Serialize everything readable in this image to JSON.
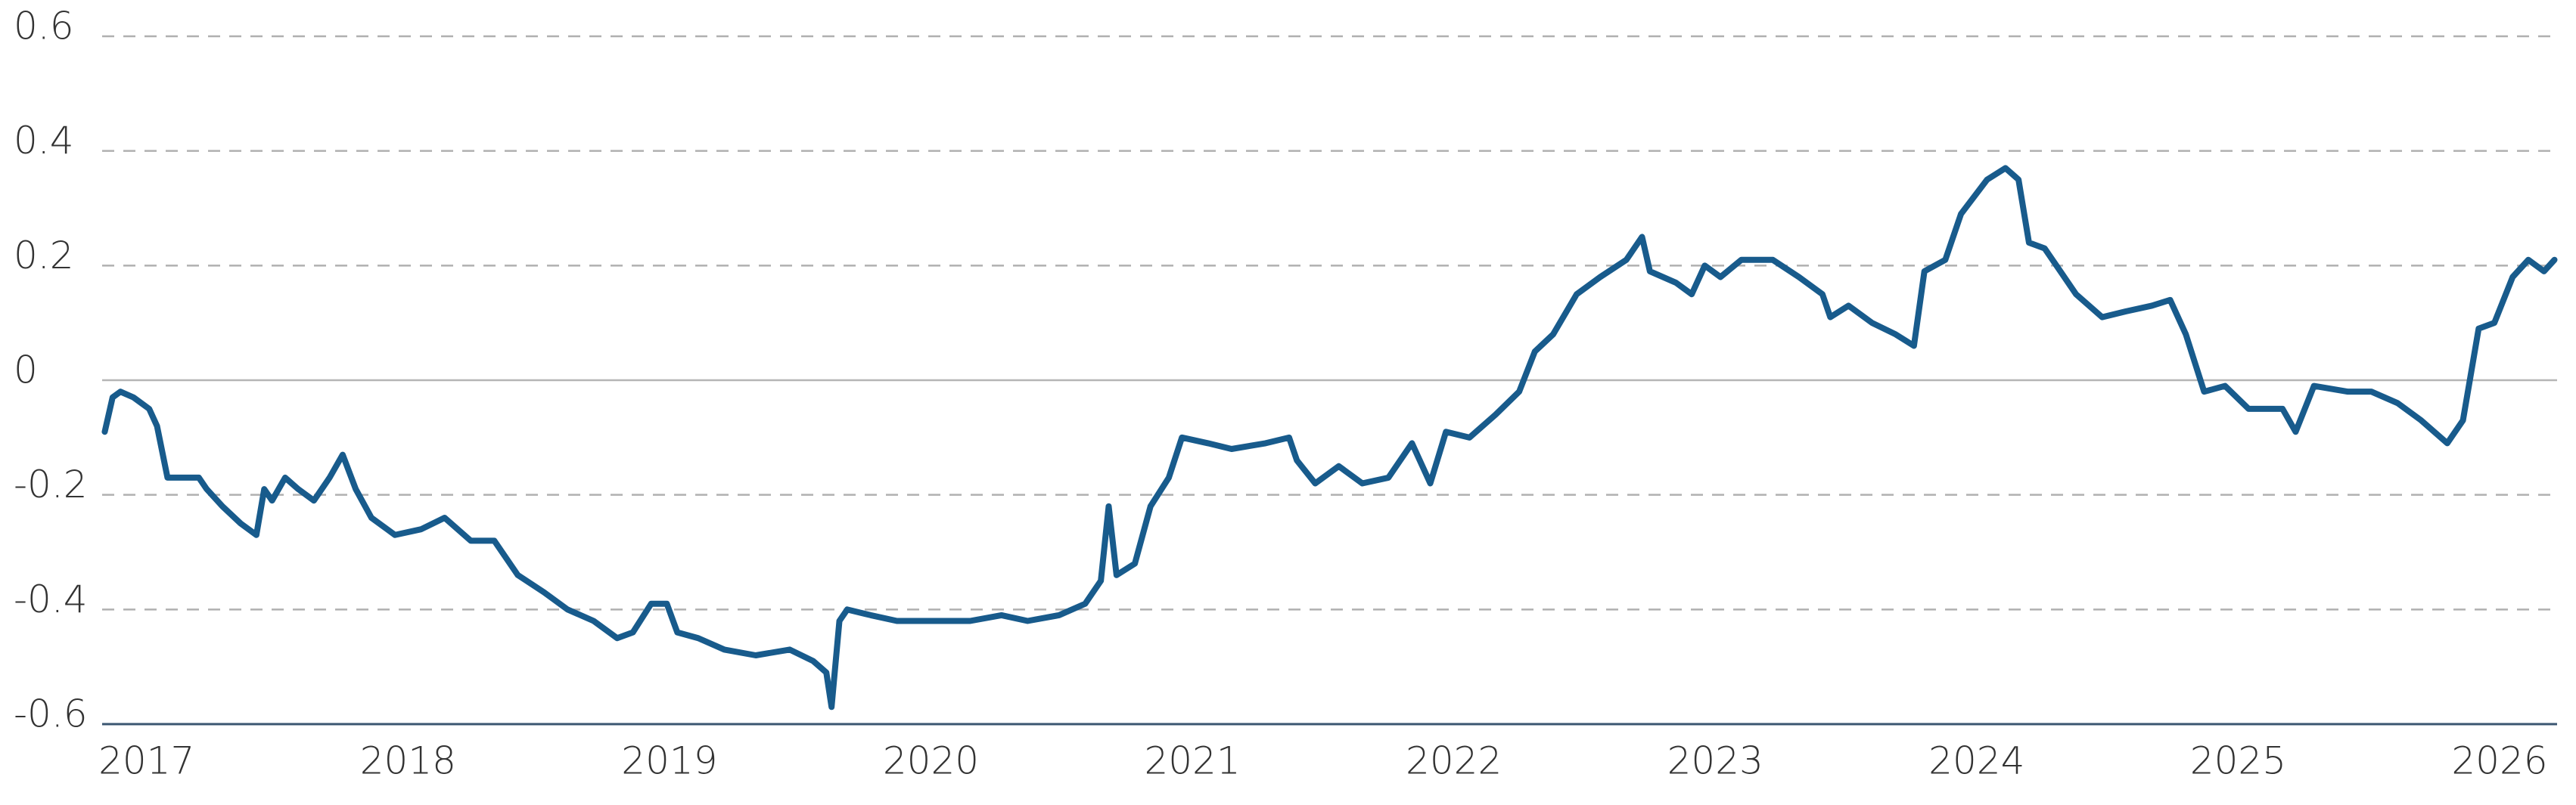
{
  "chart_data": {
    "type": "line",
    "color": "#185b8c",
    "grid": true,
    "xlim": [
      2016.83,
      2026.22
    ],
    "xticks": [
      2017,
      2018,
      2019,
      2020,
      2021,
      2022,
      2023,
      2024,
      2025,
      2026
    ],
    "ylim": [
      -0.6,
      0.6
    ],
    "yticks": [
      -0.6,
      -0.4,
      -0.2,
      0,
      0.2,
      0.4,
      0.6
    ],
    "x": [
      2016.84,
      2016.87,
      2016.9,
      2016.95,
      2017.01,
      2017.04,
      2017.08,
      2017.14,
      2017.2,
      2017.23,
      2017.29,
      2017.36,
      2017.42,
      2017.45,
      2017.48,
      2017.53,
      2017.58,
      2017.64,
      2017.7,
      2017.75,
      2017.8,
      2017.86,
      2017.95,
      2018.05,
      2018.14,
      2018.24,
      2018.33,
      2018.42,
      2018.52,
      2018.61,
      2018.71,
      2018.8,
      2018.86,
      2018.93,
      2018.99,
      2019.03,
      2019.11,
      2019.21,
      2019.33,
      2019.46,
      2019.55,
      2019.6,
      2019.62,
      2019.65,
      2019.68,
      2019.77,
      2019.87,
      2019.96,
      2020.06,
      2020.15,
      2020.27,
      2020.37,
      2020.49,
      2020.59,
      2020.65,
      2020.68,
      2020.71,
      2020.78,
      2020.84,
      2020.91,
      2020.96,
      2021.06,
      2021.15,
      2021.28,
      2021.37,
      2021.4,
      2021.47,
      2021.56,
      2021.65,
      2021.75,
      2021.84,
      2021.91,
      2021.97,
      2022.06,
      2022.16,
      2022.25,
      2022.31,
      2022.38,
      2022.47,
      2022.56,
      2022.66,
      2022.72,
      2022.75,
      2022.85,
      2022.91,
      2022.96,
      2023.02,
      2023.1,
      2023.22,
      2023.32,
      2023.41,
      2023.44,
      2023.51,
      2023.6,
      2023.69,
      2023.76,
      2023.8,
      2023.88,
      2023.94,
      2024.04,
      2024.11,
      2024.16,
      2024.2,
      2024.26,
      2024.32,
      2024.38,
      2024.48,
      2024.57,
      2024.67,
      2024.74,
      2024.8,
      2024.87,
      2024.95,
      2025.04,
      2025.17,
      2025.22,
      2025.29,
      2025.42,
      2025.51,
      2025.61,
      2025.7,
      2025.8,
      2025.86,
      2025.92,
      2025.98,
      2026.05,
      2026.11,
      2026.17,
      2026.21
    ],
    "values": [
      -0.09,
      -0.03,
      -0.02,
      -0.03,
      -0.05,
      -0.08,
      -0.17,
      -0.17,
      -0.17,
      -0.19,
      -0.22,
      -0.25,
      -0.27,
      -0.19,
      -0.21,
      -0.17,
      -0.19,
      -0.21,
      -0.17,
      -0.13,
      -0.19,
      -0.24,
      -0.27,
      -0.26,
      -0.24,
      -0.28,
      -0.28,
      -0.34,
      -0.37,
      -0.4,
      -0.42,
      -0.45,
      -0.44,
      -0.39,
      -0.39,
      -0.44,
      -0.45,
      -0.47,
      -0.48,
      -0.47,
      -0.49,
      -0.51,
      -0.57,
      -0.42,
      -0.4,
      -0.41,
      -0.42,
      -0.42,
      -0.42,
      -0.42,
      -0.41,
      -0.42,
      -0.41,
      -0.39,
      -0.35,
      -0.22,
      -0.34,
      -0.32,
      -0.22,
      -0.17,
      -0.1,
      -0.11,
      -0.12,
      -0.11,
      -0.1,
      -0.14,
      -0.18,
      -0.15,
      -0.18,
      -0.17,
      -0.11,
      -0.18,
      -0.09,
      -0.1,
      -0.06,
      -0.02,
      0.05,
      0.08,
      0.15,
      0.18,
      0.21,
      0.25,
      0.19,
      0.17,
      0.15,
      0.2,
      0.18,
      0.21,
      0.21,
      0.18,
      0.15,
      0.11,
      0.13,
      0.1,
      0.08,
      0.06,
      0.19,
      0.21,
      0.29,
      0.35,
      0.37,
      0.35,
      0.24,
      0.23,
      0.19,
      0.15,
      0.11,
      0.12,
      0.13,
      0.14,
      0.08,
      -0.02,
      -0.01,
      -0.05,
      -0.05,
      -0.09,
      -0.01,
      -0.02,
      -0.02,
      -0.04,
      -0.07,
      -0.11,
      -0.07,
      0.09,
      0.1,
      0.18,
      0.21,
      0.19,
      0.21
    ]
  }
}
